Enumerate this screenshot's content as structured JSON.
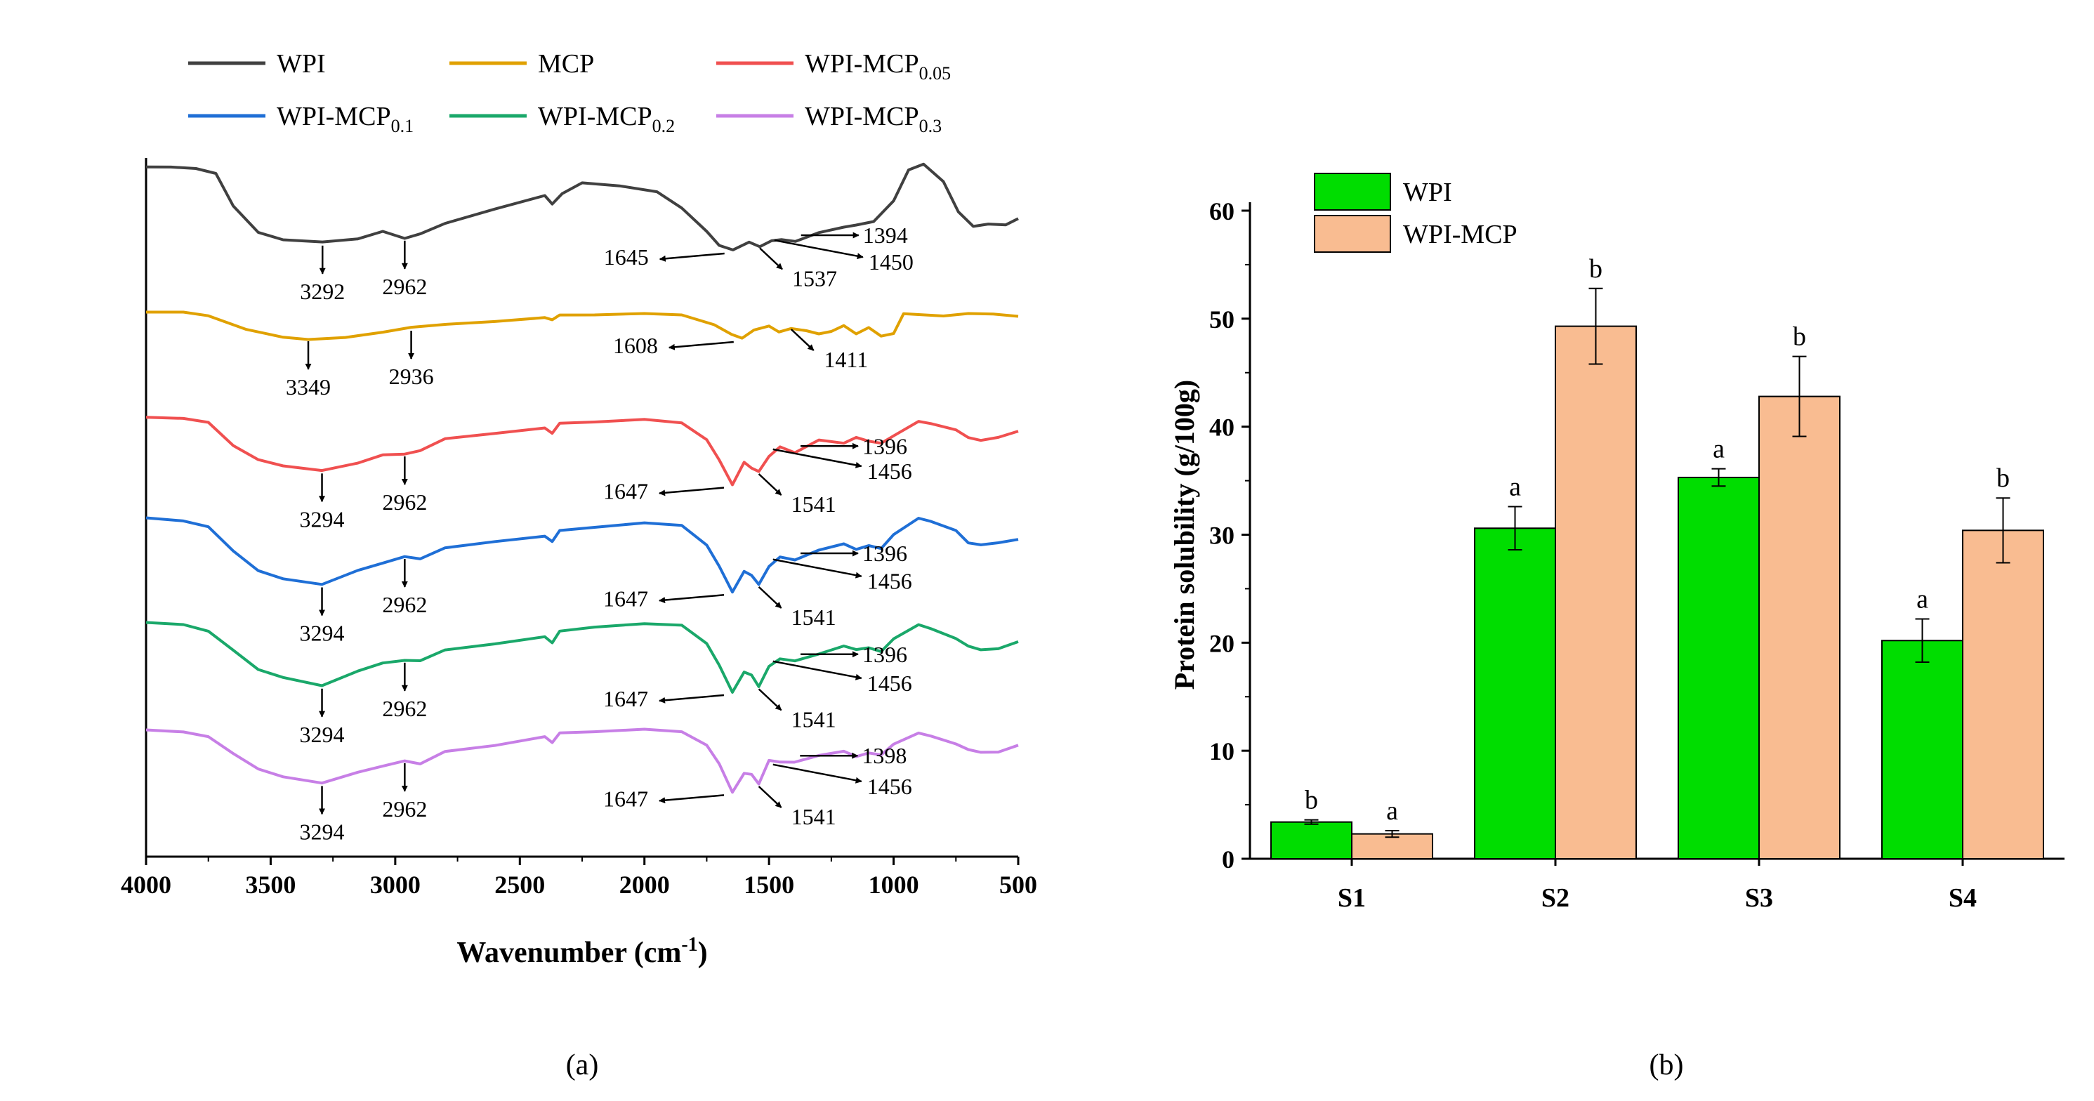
{
  "chart_data": [
    {
      "type": "line",
      "panel_label": "(a)",
      "xlabel": "Wavenumber (cm",
      "xlabel_sup": "-1",
      "xlabel_tail": ")",
      "xlim": [
        4000,
        500
      ],
      "x_ticks": [
        "4000",
        "3500",
        "3000",
        "2500",
        "2000",
        "1500",
        "1000",
        "500"
      ],
      "y_ticks_shown": false,
      "legend_position": "top",
      "series": [
        {
          "name": "WPI",
          "sub": "",
          "color": "#404040",
          "points": [
            [
              4000,
              0.2
            ],
            [
              3900,
              0.8
            ],
            [
              3800,
              2.5
            ],
            [
              3720,
              6
            ],
            [
              3650,
              40
            ],
            [
              3550,
              66
            ],
            [
              3450,
              73
            ],
            [
              3292,
              77
            ],
            [
              3150,
              73
            ],
            [
              3050,
              66
            ],
            [
              2962,
              72
            ],
            [
              2900,
              69
            ],
            [
              2800,
              58
            ],
            [
              2600,
              42
            ],
            [
              2400,
              28
            ],
            [
              2370,
              38
            ],
            [
              2330,
              26
            ],
            [
              2250,
              16
            ],
            [
              2100,
              20
            ],
            [
              1950,
              26
            ],
            [
              1850,
              42
            ],
            [
              1750,
              65
            ],
            [
              1700,
              79
            ],
            [
              1645,
              85
            ],
            [
              1580,
              76
            ],
            [
              1537,
              81
            ],
            [
              1490,
              76
            ],
            [
              1450,
              73
            ],
            [
              1394,
              75
            ],
            [
              1300,
              67
            ],
            [
              1200,
              62
            ],
            [
              1150,
              60
            ],
            [
              1080,
              56
            ],
            [
              1000,
              35
            ],
            [
              940,
              2
            ],
            [
              880,
              -2
            ],
            [
              800,
              14
            ],
            [
              740,
              46
            ],
            [
              680,
              60
            ],
            [
              620,
              58
            ],
            [
              550,
              58
            ],
            [
              500,
              52
            ]
          ]
        },
        {
          "name": "MCP",
          "sub": "",
          "color": "#E0A100",
          "points": [
            [
              4000,
              2
            ],
            [
              3850,
              3
            ],
            [
              3750,
              8
            ],
            [
              3600,
              26
            ],
            [
              3450,
              36
            ],
            [
              3349,
              39
            ],
            [
              3200,
              37
            ],
            [
              3050,
              31
            ],
            [
              2936,
              24
            ],
            [
              2800,
              20
            ],
            [
              2600,
              14
            ],
            [
              2400,
              8
            ],
            [
              2370,
              13
            ],
            [
              2340,
              7
            ],
            [
              2200,
              6
            ],
            [
              2000,
              5
            ],
            [
              1850,
              6
            ],
            [
              1720,
              18
            ],
            [
              1650,
              32
            ],
            [
              1608,
              40
            ],
            [
              1560,
              28
            ],
            [
              1500,
              20
            ],
            [
              1460,
              30
            ],
            [
              1411,
              24
            ],
            [
              1350,
              28
            ],
            [
              1300,
              33
            ],
            [
              1250,
              30
            ],
            [
              1200,
              22
            ],
            [
              1150,
              34
            ],
            [
              1100,
              25
            ],
            [
              1050,
              37
            ],
            [
              1000,
              33
            ],
            [
              960,
              4
            ],
            [
              900,
              5
            ],
            [
              800,
              6
            ],
            [
              700,
              2
            ],
            [
              600,
              3
            ],
            [
              500,
              7
            ]
          ]
        },
        {
          "name": "WPI-MCP",
          "sub": "0.05",
          "color": "#F05050",
          "points": [
            [
              4000,
              2
            ],
            [
              3850,
              4
            ],
            [
              3750,
              8
            ],
            [
              3650,
              32
            ],
            [
              3550,
              46
            ],
            [
              3450,
              52
            ],
            [
              3294,
              58
            ],
            [
              3150,
              50
            ],
            [
              3050,
              42
            ],
            [
              2962,
              40
            ],
            [
              2900,
              38
            ],
            [
              2800,
              25
            ],
            [
              2600,
              18
            ],
            [
              2400,
              12
            ],
            [
              2370,
              19
            ],
            [
              2340,
              9
            ],
            [
              2200,
              7
            ],
            [
              2000,
              5
            ],
            [
              1850,
              8
            ],
            [
              1750,
              25
            ],
            [
              1700,
              46
            ],
            [
              1647,
              73
            ],
            [
              1600,
              48
            ],
            [
              1570,
              55
            ],
            [
              1541,
              60
            ],
            [
              1500,
              42
            ],
            [
              1456,
              34
            ],
            [
              1396,
              38
            ],
            [
              1300,
              26
            ],
            [
              1200,
              30
            ],
            [
              1150,
              24
            ],
            [
              1100,
              28
            ],
            [
              1050,
              30
            ],
            [
              1000,
              22
            ],
            [
              900,
              6
            ],
            [
              850,
              8
            ],
            [
              750,
              14
            ],
            [
              700,
              22
            ],
            [
              650,
              25
            ],
            [
              580,
              22
            ],
            [
              500,
              16
            ]
          ]
        },
        {
          "name": "WPI-MCP",
          "sub": "0.1",
          "color": "#1F6FD6",
          "points": [
            [
              4000,
              0
            ],
            [
              3850,
              4
            ],
            [
              3750,
              10
            ],
            [
              3650,
              35
            ],
            [
              3550,
              55
            ],
            [
              3450,
              63
            ],
            [
              3294,
              70
            ],
            [
              3150,
              55
            ],
            [
              3050,
              48
            ],
            [
              2962,
              40
            ],
            [
              2900,
              44
            ],
            [
              2800,
              32
            ],
            [
              2600,
              24
            ],
            [
              2400,
              18
            ],
            [
              2370,
              25
            ],
            [
              2340,
              14
            ],
            [
              2200,
              10
            ],
            [
              2000,
              6
            ],
            [
              1850,
              8
            ],
            [
              1750,
              28
            ],
            [
              1700,
              50
            ],
            [
              1647,
              78
            ],
            [
              1600,
              55
            ],
            [
              1570,
              60
            ],
            [
              1541,
              71
            ],
            [
              1500,
              50
            ],
            [
              1456,
              42
            ],
            [
              1396,
              43
            ],
            [
              1300,
              34
            ],
            [
              1200,
              28
            ],
            [
              1150,
              34
            ],
            [
              1100,
              30
            ],
            [
              1050,
              33
            ],
            [
              1000,
              18
            ],
            [
              900,
              0
            ],
            [
              850,
              3
            ],
            [
              750,
              12
            ],
            [
              700,
              25
            ],
            [
              650,
              27
            ],
            [
              580,
              25
            ],
            [
              500,
              22
            ]
          ]
        },
        {
          "name": "WPI-MCP",
          "sub": "0.2",
          "color": "#1AA86A",
          "points": [
            [
              4000,
              0
            ],
            [
              3850,
              3
            ],
            [
              3750,
              10
            ],
            [
              3650,
              30
            ],
            [
              3550,
              50
            ],
            [
              3450,
              58
            ],
            [
              3294,
              68
            ],
            [
              3150,
              52
            ],
            [
              3050,
              44
            ],
            [
              2962,
              40
            ],
            [
              2900,
              42
            ],
            [
              2800,
              30
            ],
            [
              2600,
              22
            ],
            [
              2400,
              14
            ],
            [
              2370,
              22
            ],
            [
              2340,
              10
            ],
            [
              2200,
              5
            ],
            [
              2000,
              2
            ],
            [
              1850,
              3
            ],
            [
              1750,
              22
            ],
            [
              1700,
              45
            ],
            [
              1647,
              75
            ],
            [
              1600,
              52
            ],
            [
              1570,
              56
            ],
            [
              1541,
              70
            ],
            [
              1500,
              46
            ],
            [
              1456,
              40
            ],
            [
              1396,
              40
            ],
            [
              1300,
              34
            ],
            [
              1200,
              26
            ],
            [
              1150,
              30
            ],
            [
              1100,
              28
            ],
            [
              1050,
              32
            ],
            [
              1000,
              18
            ],
            [
              900,
              2
            ],
            [
              850,
              6
            ],
            [
              750,
              16
            ],
            [
              700,
              24
            ],
            [
              650,
              28
            ],
            [
              580,
              27
            ],
            [
              500,
              20
            ]
          ]
        },
        {
          "name": "WPI-MCP",
          "sub": "0.3",
          "color": "#C77FE6",
          "points": [
            [
              4000,
              0
            ],
            [
              3850,
              3
            ],
            [
              3750,
              8
            ],
            [
              3650,
              26
            ],
            [
              3550,
              42
            ],
            [
              3450,
              50
            ],
            [
              3294,
              58
            ],
            [
              3150,
              46
            ],
            [
              3050,
              40
            ],
            [
              2962,
              33
            ],
            [
              2900,
              38
            ],
            [
              2800,
              24
            ],
            [
              2600,
              16
            ],
            [
              2400,
              6
            ],
            [
              2370,
              14
            ],
            [
              2340,
              4
            ],
            [
              2200,
              2
            ],
            [
              2000,
              0
            ],
            [
              1850,
              2
            ],
            [
              1750,
              16
            ],
            [
              1700,
              36
            ],
            [
              1647,
              68
            ],
            [
              1600,
              46
            ],
            [
              1570,
              48
            ],
            [
              1541,
              60
            ],
            [
              1500,
              32
            ],
            [
              1456,
              36
            ],
            [
              1398,
              34
            ],
            [
              1300,
              28
            ],
            [
              1200,
              24
            ],
            [
              1150,
              30
            ],
            [
              1100,
              26
            ],
            [
              1050,
              28
            ],
            [
              1000,
              16
            ],
            [
              900,
              3
            ],
            [
              850,
              6
            ],
            [
              750,
              14
            ],
            [
              700,
              20
            ],
            [
              650,
              23
            ],
            [
              580,
              23
            ],
            [
              500,
              16
            ]
          ]
        }
      ],
      "annotations": [
        {
          "series": 0,
          "labels": [
            "3292",
            "2962",
            "1645",
            "1537",
            "1394",
            "1450"
          ]
        },
        {
          "series": 1,
          "labels": [
            "3349",
            "2936",
            "1608",
            "1411"
          ]
        },
        {
          "series": 2,
          "labels": [
            "3294",
            "2962",
            "1647",
            "1541",
            "1396",
            "1456"
          ]
        },
        {
          "series": 3,
          "labels": [
            "3294",
            "2962",
            "1647",
            "1541",
            "1396",
            "1456"
          ]
        },
        {
          "series": 4,
          "labels": [
            "3294",
            "2962",
            "1647",
            "1541",
            "1396",
            "1456"
          ]
        },
        {
          "series": 5,
          "labels": [
            "3294",
            "2962",
            "1647",
            "1541",
            "1398",
            "1456"
          ]
        }
      ]
    },
    {
      "type": "bar",
      "panel_label": "(b)",
      "categories": [
        "S1",
        "S2",
        "S3",
        "S4"
      ],
      "ylabel": "Protein solubility (g/100g)",
      "xlabel": "",
      "ylim": [
        0,
        60
      ],
      "y_ticks": [
        "0",
        "10",
        "20",
        "30",
        "40",
        "50",
        "60"
      ],
      "legend_position": "top-left",
      "series": [
        {
          "name": "WPI",
          "color": "#00DD00",
          "values": [
            3.4,
            30.6,
            35.3,
            20.2
          ],
          "errors": [
            0.2,
            2.0,
            0.8,
            2.0
          ],
          "letters": [
            "b",
            "a",
            "a",
            "a"
          ]
        },
        {
          "name": "WPI-MCP",
          "color": "#F9BC91",
          "values": [
            2.3,
            49.3,
            42.8,
            30.4
          ],
          "errors": [
            0.3,
            3.5,
            3.7,
            3.0
          ],
          "letters": [
            "a",
            "b",
            "b",
            "b"
          ]
        }
      ]
    }
  ]
}
